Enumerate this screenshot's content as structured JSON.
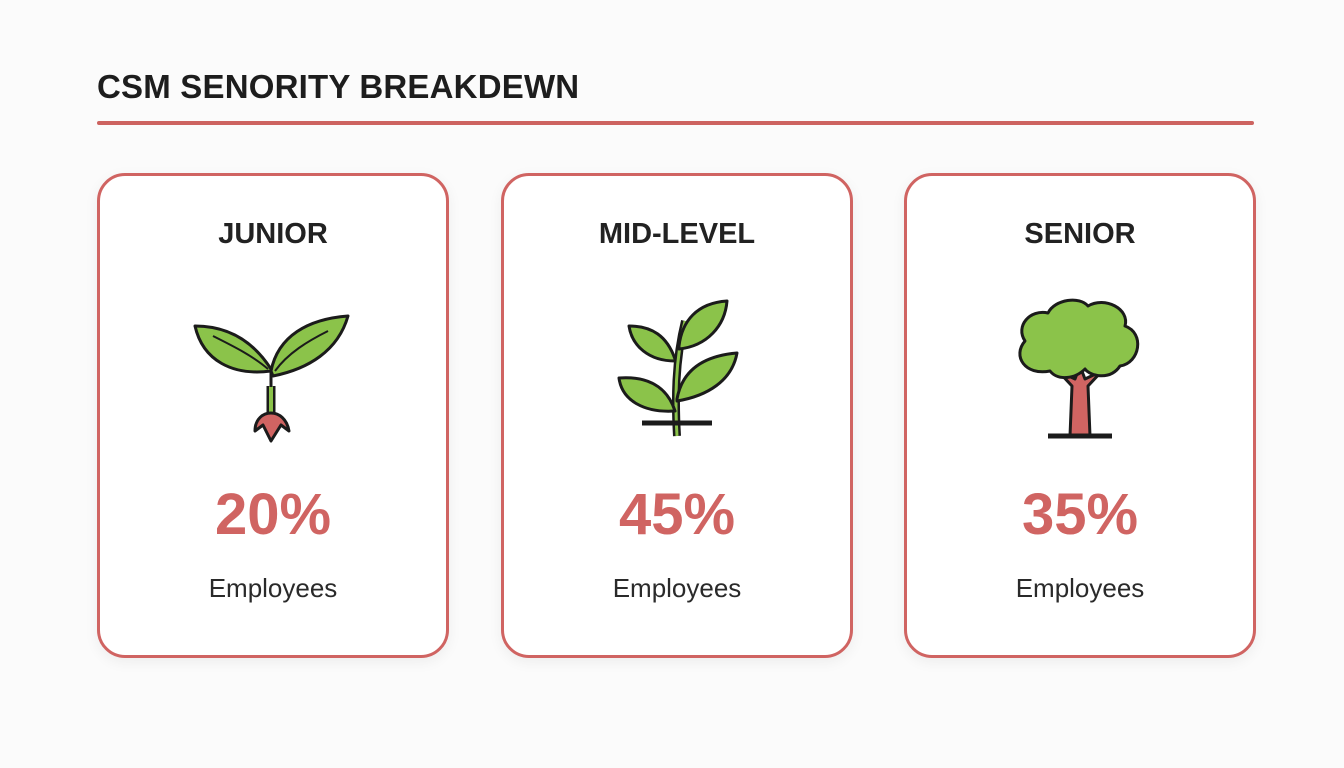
{
  "header": {
    "title": "CSM SENORITY BREAKDEWN"
  },
  "colors": {
    "accent": "#d06462",
    "leaf": "#8bc34a",
    "text": "#222222"
  },
  "cards": [
    {
      "label": "JUNIOR",
      "icon": "sprout-icon",
      "value": "20%",
      "sublabel": "Employees"
    },
    {
      "label": "MID-LEVEL",
      "icon": "plant-icon",
      "value": "45%",
      "sublabel": "Employees"
    },
    {
      "label": "SENIOR",
      "icon": "tree-icon",
      "value": "35%",
      "sublabel": "Employees"
    }
  ]
}
